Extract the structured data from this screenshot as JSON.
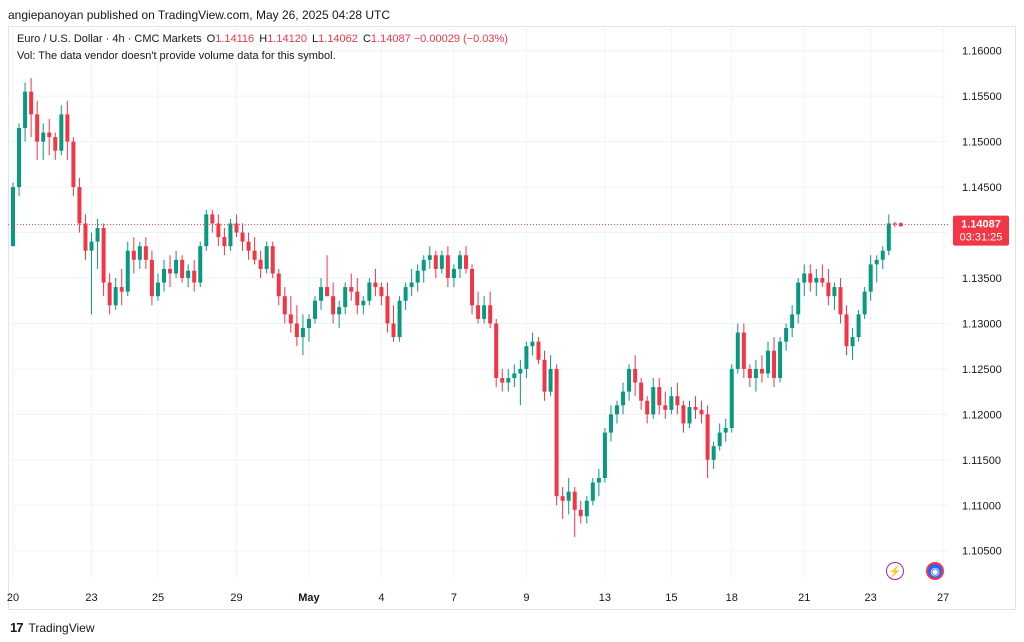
{
  "publisher_line": "angiepanoyan published on TradingView.com, May 26, 2025 04:28 UTC",
  "legend": {
    "symbol": "Euro / U.S. Dollar · 4h · CMC Markets",
    "o_label": "O",
    "o": "1.14116",
    "h_label": "H",
    "h": "1.14120",
    "l_label": "L",
    "l": "1.14062",
    "c_label": "C",
    "c": "1.14087",
    "change": "−0.00029 (−0.03%)",
    "vol_note": "Vol: The data vendor doesn't provide volume data for this symbol."
  },
  "price_tag": {
    "price": "1.14087",
    "countdown": "03:31:25"
  },
  "footer": {
    "brand": "TradingView",
    "logo_text": "17"
  },
  "colors": {
    "up": "#089981",
    "down": "#f23645",
    "grid": "#f0f3fa",
    "text": "#131722"
  },
  "icons": [
    "lightning-icon",
    "flag-icon"
  ],
  "chart_data": {
    "type": "candlestick",
    "title": "Euro / U.S. Dollar · 4h · CMC Markets",
    "y_ticks": [
      1.16,
      1.155,
      1.15,
      1.145,
      1.14,
      1.135,
      1.13,
      1.125,
      1.12,
      1.115,
      1.11,
      1.105
    ],
    "y_tick_labels": [
      "1.16000",
      "1.15500",
      "1.15000",
      "1.14500",
      "1.14000",
      "1.13500",
      "1.13000",
      "1.12500",
      "1.12000",
      "1.11500",
      "1.11000",
      "1.10500"
    ],
    "ylim": [
      1.102,
      1.1625
    ],
    "x_labels": [
      {
        "label": "20",
        "index": 0
      },
      {
        "label": "23",
        "index": 13
      },
      {
        "label": "25",
        "index": 24
      },
      {
        "label": "29",
        "index": 37
      },
      {
        "label": "May",
        "index": 49
      },
      {
        "label": "4",
        "index": 61
      },
      {
        "label": "7",
        "index": 73
      },
      {
        "label": "9",
        "index": 85
      },
      {
        "label": "13",
        "index": 98
      },
      {
        "label": "15",
        "index": 109
      },
      {
        "label": "18",
        "index": 119
      },
      {
        "label": "21",
        "index": 131
      },
      {
        "label": "23",
        "index": 142
      },
      {
        "label": "27",
        "index": 154
      }
    ],
    "last_close": 1.14087,
    "ohlc": [
      [
        1.1385,
        1.1455,
        1.1385,
        1.145
      ],
      [
        1.145,
        1.152,
        1.144,
        1.1515
      ],
      [
        1.1515,
        1.1565,
        1.15,
        1.1555
      ],
      [
        1.1555,
        1.157,
        1.1505,
        1.153
      ],
      [
        1.153,
        1.1545,
        1.148,
        1.15
      ],
      [
        1.15,
        1.152,
        1.148,
        1.151
      ],
      [
        1.151,
        1.1525,
        1.1485,
        1.1505
      ],
      [
        1.1505,
        1.151,
        1.148,
        1.149
      ],
      [
        1.149,
        1.154,
        1.1485,
        1.153
      ],
      [
        1.153,
        1.1545,
        1.148,
        1.15
      ],
      [
        1.15,
        1.1505,
        1.144,
        1.145
      ],
      [
        1.145,
        1.146,
        1.14,
        1.141
      ],
      [
        1.141,
        1.142,
        1.137,
        1.138
      ],
      [
        1.138,
        1.14,
        1.131,
        1.139
      ],
      [
        1.139,
        1.1415,
        1.136,
        1.1405
      ],
      [
        1.1405,
        1.141,
        1.133,
        1.1345
      ],
      [
        1.1345,
        1.1355,
        1.131,
        1.132
      ],
      [
        1.132,
        1.135,
        1.1315,
        1.134
      ],
      [
        1.134,
        1.136,
        1.132,
        1.1335
      ],
      [
        1.1335,
        1.139,
        1.133,
        1.138
      ],
      [
        1.138,
        1.1395,
        1.1355,
        1.137
      ],
      [
        1.137,
        1.139,
        1.136,
        1.1385
      ],
      [
        1.1385,
        1.1395,
        1.136,
        1.137
      ],
      [
        1.137,
        1.138,
        1.132,
        1.133
      ],
      [
        1.133,
        1.1355,
        1.1325,
        1.1345
      ],
      [
        1.1345,
        1.137,
        1.1335,
        1.136
      ],
      [
        1.136,
        1.1375,
        1.134,
        1.1355
      ],
      [
        1.1355,
        1.138,
        1.135,
        1.137
      ],
      [
        1.137,
        1.1375,
        1.1345,
        1.135
      ],
      [
        1.135,
        1.1365,
        1.134,
        1.1358
      ],
      [
        1.1358,
        1.137,
        1.1335,
        1.1345
      ],
      [
        1.1345,
        1.139,
        1.134,
        1.1385
      ],
      [
        1.1385,
        1.1425,
        1.138,
        1.142
      ],
      [
        1.142,
        1.1425,
        1.14,
        1.141
      ],
      [
        1.141,
        1.142,
        1.1385,
        1.1395
      ],
      [
        1.1395,
        1.1405,
        1.1375,
        1.1385
      ],
      [
        1.1385,
        1.1415,
        1.138,
        1.141
      ],
      [
        1.141,
        1.142,
        1.1395,
        1.14
      ],
      [
        1.14,
        1.141,
        1.138,
        1.139
      ],
      [
        1.139,
        1.14,
        1.137,
        1.138
      ],
      [
        1.138,
        1.1395,
        1.1365,
        1.137
      ],
      [
        1.137,
        1.138,
        1.135,
        1.136
      ],
      [
        1.136,
        1.139,
        1.1355,
        1.1385
      ],
      [
        1.1385,
        1.139,
        1.135,
        1.1355
      ],
      [
        1.1355,
        1.136,
        1.132,
        1.133
      ],
      [
        1.133,
        1.134,
        1.13,
        1.131
      ],
      [
        1.131,
        1.133,
        1.129,
        1.13
      ],
      [
        1.13,
        1.132,
        1.1275,
        1.1285
      ],
      [
        1.1285,
        1.131,
        1.1265,
        1.1295
      ],
      [
        1.1295,
        1.131,
        1.128,
        1.1305
      ],
      [
        1.1305,
        1.133,
        1.13,
        1.1325
      ],
      [
        1.1325,
        1.135,
        1.1315,
        1.134
      ],
      [
        1.134,
        1.1375,
        1.133,
        1.133
      ],
      [
        1.133,
        1.1345,
        1.13,
        1.131
      ],
      [
        1.131,
        1.1325,
        1.1295,
        1.1318
      ],
      [
        1.1318,
        1.1345,
        1.131,
        1.134
      ],
      [
        1.134,
        1.1355,
        1.1325,
        1.1335
      ],
      [
        1.1335,
        1.135,
        1.131,
        1.132
      ],
      [
        1.132,
        1.133,
        1.131,
        1.1325
      ],
      [
        1.1325,
        1.135,
        1.132,
        1.1345
      ],
      [
        1.1345,
        1.136,
        1.133,
        1.134
      ],
      [
        1.134,
        1.1345,
        1.132,
        1.133
      ],
      [
        1.133,
        1.1345,
        1.129,
        1.13
      ],
      [
        1.13,
        1.132,
        1.128,
        1.1285
      ],
      [
        1.1285,
        1.133,
        1.128,
        1.1325
      ],
      [
        1.1325,
        1.1345,
        1.1315,
        1.134
      ],
      [
        1.134,
        1.136,
        1.133,
        1.1345
      ],
      [
        1.1345,
        1.1365,
        1.1335,
        1.1358
      ],
      [
        1.1358,
        1.1375,
        1.1345,
        1.137
      ],
      [
        1.137,
        1.1385,
        1.136,
        1.1375
      ],
      [
        1.1375,
        1.138,
        1.135,
        1.136
      ],
      [
        1.136,
        1.138,
        1.1355,
        1.1375
      ],
      [
        1.1375,
        1.1385,
        1.134,
        1.135
      ],
      [
        1.135,
        1.1365,
        1.134,
        1.136
      ],
      [
        1.136,
        1.138,
        1.135,
        1.1375
      ],
      [
        1.1375,
        1.1385,
        1.1355,
        1.136
      ],
      [
        1.136,
        1.1365,
        1.131,
        1.132
      ],
      [
        1.132,
        1.1335,
        1.13,
        1.1305
      ],
      [
        1.1305,
        1.133,
        1.13,
        1.132
      ],
      [
        1.132,
        1.1335,
        1.1295,
        1.13
      ],
      [
        1.13,
        1.1305,
        1.123,
        1.124
      ],
      [
        1.124,
        1.125,
        1.1225,
        1.1235
      ],
      [
        1.1235,
        1.125,
        1.1225,
        1.124
      ],
      [
        1.124,
        1.1255,
        1.123,
        1.1245
      ],
      [
        1.1245,
        1.126,
        1.121,
        1.125
      ],
      [
        1.125,
        1.128,
        1.124,
        1.1275
      ],
      [
        1.1275,
        1.129,
        1.1265,
        1.128
      ],
      [
        1.128,
        1.1285,
        1.1255,
        1.126
      ],
      [
        1.126,
        1.127,
        1.1215,
        1.1225
      ],
      [
        1.1225,
        1.1265,
        1.122,
        1.125
      ],
      [
        1.125,
        1.1255,
        1.11,
        1.111
      ],
      [
        1.111,
        1.112,
        1.1085,
        1.1105
      ],
      [
        1.1105,
        1.113,
        1.109,
        1.1115
      ],
      [
        1.1115,
        1.112,
        1.1065,
        1.1095
      ],
      [
        1.1095,
        1.1105,
        1.108,
        1.1088
      ],
      [
        1.1088,
        1.111,
        1.108,
        1.1105
      ],
      [
        1.1105,
        1.113,
        1.11,
        1.1125
      ],
      [
        1.1125,
        1.114,
        1.111,
        1.113
      ],
      [
        1.113,
        1.1185,
        1.1125,
        1.118
      ],
      [
        1.118,
        1.121,
        1.117,
        1.12
      ],
      [
        1.12,
        1.1215,
        1.119,
        1.121
      ],
      [
        1.121,
        1.1235,
        1.12,
        1.1225
      ],
      [
        1.1225,
        1.1255,
        1.1215,
        1.125
      ],
      [
        1.125,
        1.1265,
        1.122,
        1.1235
      ],
      [
        1.1235,
        1.124,
        1.1205,
        1.1215
      ],
      [
        1.1215,
        1.122,
        1.119,
        1.12
      ],
      [
        1.12,
        1.124,
        1.1195,
        1.123
      ],
      [
        1.123,
        1.124,
        1.12,
        1.121
      ],
      [
        1.121,
        1.1225,
        1.1195,
        1.1205
      ],
      [
        1.1205,
        1.123,
        1.12,
        1.122
      ],
      [
        1.122,
        1.1235,
        1.12,
        1.121
      ],
      [
        1.121,
        1.1215,
        1.118,
        1.119
      ],
      [
        1.119,
        1.1215,
        1.1185,
        1.1208
      ],
      [
        1.1208,
        1.122,
        1.1195,
        1.1205
      ],
      [
        1.1205,
        1.1215,
        1.119,
        1.12
      ],
      [
        1.12,
        1.121,
        1.113,
        1.115
      ],
      [
        1.115,
        1.117,
        1.114,
        1.1165
      ],
      [
        1.1165,
        1.119,
        1.116,
        1.118
      ],
      [
        1.118,
        1.1195,
        1.117,
        1.1185
      ],
      [
        1.1185,
        1.1255,
        1.118,
        1.125
      ],
      [
        1.125,
        1.13,
        1.1245,
        1.129
      ],
      [
        1.129,
        1.13,
        1.124,
        1.125
      ],
      [
        1.125,
        1.1255,
        1.123,
        1.124
      ],
      [
        1.124,
        1.126,
        1.1225,
        1.125
      ],
      [
        1.125,
        1.1265,
        1.1235,
        1.1245
      ],
      [
        1.1245,
        1.128,
        1.124,
        1.127
      ],
      [
        1.127,
        1.1285,
        1.123,
        1.124
      ],
      [
        1.124,
        1.1285,
        1.1235,
        1.128
      ],
      [
        1.128,
        1.13,
        1.127,
        1.1295
      ],
      [
        1.1295,
        1.132,
        1.1285,
        1.131
      ],
      [
        1.131,
        1.135,
        1.13,
        1.1345
      ],
      [
        1.1345,
        1.1365,
        1.133,
        1.1355
      ],
      [
        1.1355,
        1.1365,
        1.1335,
        1.1345
      ],
      [
        1.1345,
        1.136,
        1.133,
        1.135
      ],
      [
        1.135,
        1.1365,
        1.134,
        1.1345
      ],
      [
        1.1345,
        1.136,
        1.132,
        1.133
      ],
      [
        1.133,
        1.1345,
        1.1315,
        1.134
      ],
      [
        1.134,
        1.135,
        1.13,
        1.131
      ],
      [
        1.131,
        1.132,
        1.1265,
        1.1275
      ],
      [
        1.1275,
        1.1295,
        1.126,
        1.1285
      ],
      [
        1.1285,
        1.1315,
        1.128,
        1.131
      ],
      [
        1.131,
        1.134,
        1.1305,
        1.1335
      ],
      [
        1.1335,
        1.1375,
        1.1325,
        1.1365
      ],
      [
        1.1365,
        1.1375,
        1.1345,
        1.137
      ],
      [
        1.137,
        1.1385,
        1.136,
        1.138
      ],
      [
        1.138,
        1.142,
        1.1375,
        1.141
      ],
      [
        1.141,
        1.1412,
        1.1406,
        1.1409
      ]
    ]
  }
}
